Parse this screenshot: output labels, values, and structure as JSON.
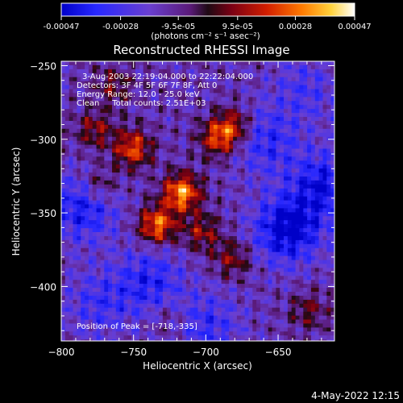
{
  "chart_data": [
    {
      "type": "colorbar",
      "colormap": "rhessi-blue-purple-red-yellow-white",
      "range": [
        -0.00047,
        0.00047
      ],
      "tick_labels": [
        "-0.00047",
        "-0.00028",
        "-9.5e-05",
        "9.5e-05",
        "0.00028",
        "0.00047"
      ],
      "label": "(photons cm⁻² s⁻¹ asec⁻²)"
    },
    {
      "type": "heatmap",
      "title": "Reconstructed RHESSI Image",
      "xlabel": "Heliocentric X (arcsec)",
      "ylabel": "Heliocentric Y (arcsec)",
      "xlim": [
        -800,
        -611
      ],
      "ylim": [
        -437,
        -247
      ],
      "x_ticks": [
        -800,
        -750,
        -700,
        -650
      ],
      "y_ticks": [
        -250,
        -300,
        -350,
        -400
      ],
      "x_tick_labels": [
        "−800",
        "−750",
        "−700",
        "−650"
      ],
      "y_tick_labels": [
        "−250",
        "−300",
        "−350",
        "−400"
      ],
      "annotations": [
        "3-Aug-2003 22:19:04.000 to 22:22:04.000",
        "Detectors: 3F 4F 5F 6F 7F 8F, Att 0",
        "Energy Range: 12.0 - 25.0 keV",
        "Clean     Total counts: 2.51E+03",
        "Position of Peak = [-718,-335]"
      ],
      "peak_position": [
        -718,
        -335
      ],
      "bright_sources": [
        {
          "x": -752,
          "y": -305,
          "value": 0.00036
        },
        {
          "x": -735,
          "y": -357,
          "value": 0.00042
        },
        {
          "x": -718,
          "y": -335,
          "value": 0.00047
        },
        {
          "x": -693,
          "y": -298,
          "value": 0.00032
        },
        {
          "x": -682,
          "y": -290,
          "value": 0.00028
        },
        {
          "x": -778,
          "y": -292,
          "value": 0.00022
        },
        {
          "x": -775,
          "y": -330,
          "value": 0.00019
        },
        {
          "x": -704,
          "y": -362,
          "value": 0.00023
        },
        {
          "x": -683,
          "y": -380,
          "value": 0.00021
        },
        {
          "x": -765,
          "y": -262,
          "value": 0.00018
        },
        {
          "x": -630,
          "y": -415,
          "value": 0.00017
        },
        {
          "x": -727,
          "y": -420,
          "value": 0.0001
        }
      ],
      "dark_regions": [
        {
          "x": -645,
          "y": -360,
          "value": -0.00036
        },
        {
          "x": -620,
          "y": -330,
          "value": -0.00028
        },
        {
          "x": -786,
          "y": -345,
          "value": -0.00026
        },
        {
          "x": -740,
          "y": -395,
          "value": -0.00022
        },
        {
          "x": -660,
          "y": -300,
          "value": -0.0002
        },
        {
          "x": -700,
          "y": -425,
          "value": -0.00018
        },
        {
          "x": -775,
          "y": -410,
          "value": -0.00016
        },
        {
          "x": -633,
          "y": -265,
          "value": -0.00014
        }
      ]
    }
  ],
  "footer": {
    "timestamp": "4-May-2022 12:15"
  }
}
